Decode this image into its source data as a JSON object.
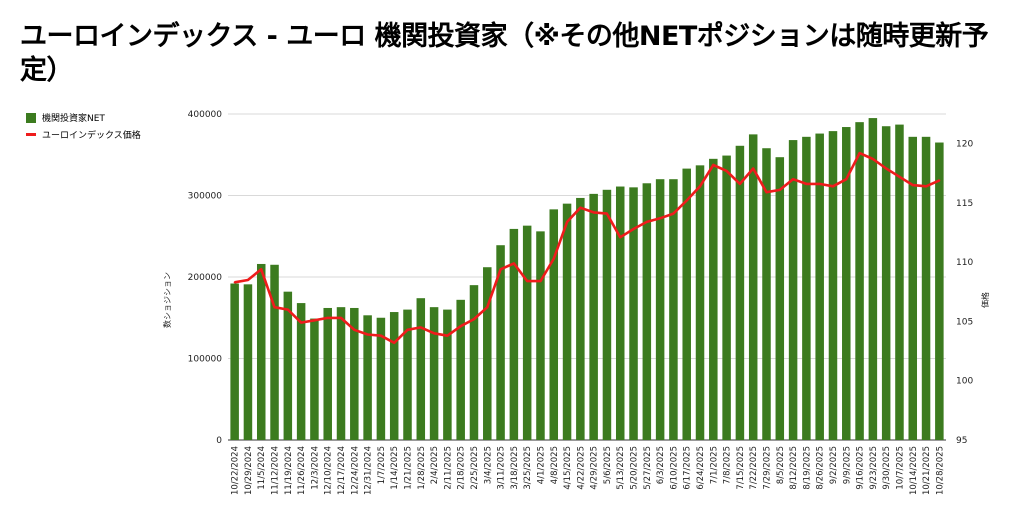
{
  "title": "ユーロインデックス - ユーロ 機関投資家（※その他NETポジションは随時更新予定）",
  "colors": {
    "bar": "#3c7b1f",
    "line": "#ee1c1c",
    "grid": "#d9d9d9"
  },
  "chart_data": {
    "type": "bar",
    "categories": [
      "10/22/2024",
      "10/29/2024",
      "11/5/2024",
      "11/12/2024",
      "11/19/2024",
      "11/26/2024",
      "12/3/2024",
      "12/10/2024",
      "12/17/2024",
      "12/24/2024",
      "12/31/2024",
      "1/7/2025",
      "1/14/2025",
      "1/21/2025",
      "1/28/2025",
      "2/4/2025",
      "2/11/2025",
      "2/18/2025",
      "2/25/2025",
      "3/4/2025",
      "3/11/2025",
      "3/18/2025",
      "3/25/2025",
      "4/1/2025",
      "4/8/2025",
      "4/15/2025",
      "4/22/2025",
      "4/29/2025",
      "5/6/2025",
      "5/13/2025",
      "5/20/2025",
      "5/27/2025",
      "6/3/2025",
      "6/10/2025",
      "6/17/2025",
      "6/24/2025",
      "7/1/2025",
      "7/8/2025",
      "7/15/2025",
      "7/22/2025",
      "7/29/2025",
      "8/5/2025",
      "8/12/2025",
      "8/19/2025",
      "8/26/2025",
      "9/2/2025",
      "9/9/2025",
      "9/16/2025",
      "9/23/2025",
      "9/30/2025",
      "10/7/2025",
      "10/14/2025",
      "10/21/2025",
      "10/28/2025"
    ],
    "series": [
      {
        "name": "機関投資家NET",
        "axis": "left",
        "type": "bar",
        "values": [
          192000,
          191000,
          216000,
          215000,
          182000,
          168000,
          149000,
          162000,
          163000,
          162000,
          153000,
          150000,
          157000,
          160000,
          174000,
          163000,
          160000,
          172000,
          190000,
          212000,
          239000,
          259000,
          263000,
          256000,
          283000,
          290000,
          297000,
          302000,
          307000,
          311000,
          310000,
          315000,
          320000,
          320000,
          333000,
          337000,
          345000,
          349000,
          361000,
          375000,
          358000,
          347000,
          368000,
          372000,
          376000,
          379000,
          384000,
          390000,
          395000,
          385000,
          387000,
          372000,
          372000,
          365000
        ]
      },
      {
        "name": "ユーロインデックス価格",
        "axis": "right",
        "type": "line",
        "values": [
          108.3,
          108.5,
          109.4,
          106.2,
          106.0,
          104.9,
          105.1,
          105.3,
          105.3,
          104.3,
          103.9,
          103.8,
          103.2,
          104.3,
          104.5,
          104.0,
          103.8,
          104.6,
          105.2,
          106.2,
          109.4,
          109.9,
          108.4,
          108.4,
          110.3,
          113.4,
          114.6,
          114.2,
          114.1,
          112.1,
          112.8,
          113.4,
          113.7,
          114.1,
          115.2,
          116.4,
          118.2,
          117.7,
          116.6,
          117.9,
          115.9,
          116.1,
          117.0,
          116.6,
          116.6,
          116.4,
          117.0,
          119.2,
          118.7,
          117.9,
          117.2,
          116.5,
          116.4,
          116.9
        ]
      }
    ],
    "ylabel": "数ショジション",
    "y2label": "価格",
    "ylim": [
      0,
      400000
    ],
    "y2lim": [
      95,
      122.5
    ],
    "yticks": [
      "0",
      "100000",
      "200000",
      "300000",
      "400000"
    ],
    "y2ticks": [
      "95",
      "100",
      "105",
      "110",
      "115",
      "120"
    ],
    "grid": true,
    "legend": "top-left"
  }
}
